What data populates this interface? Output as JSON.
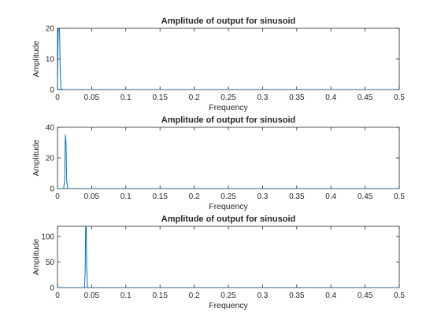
{
  "chart_data": [
    {
      "type": "line",
      "title": "Amplitude of output for sinusoid",
      "xlabel": "Frequency",
      "ylabel": "Amplitude",
      "xlim": [
        0,
        0.5
      ],
      "ylim": [
        0,
        20
      ],
      "xticks": [
        0,
        0.05,
        0.1,
        0.15,
        0.2,
        0.25,
        0.3,
        0.35,
        0.4,
        0.45,
        0.5
      ],
      "xtick_labels": [
        "0",
        "0.05",
        "0.1",
        "0.15",
        "0.2",
        "0.25",
        "0.3",
        "0.35",
        "0.4",
        "0.45",
        "0.5"
      ],
      "yticks": [
        0,
        10,
        20
      ],
      "ytick_labels": [
        "0",
        "10",
        "20"
      ],
      "grid": false,
      "color": "#0072BD",
      "series": [
        {
          "x": [
            0,
            0.001,
            0.002,
            0.003,
            0.004,
            0.005,
            0.006,
            0.008,
            0.5
          ],
          "y": [
            0.3,
            19.0,
            20.0,
            19.5,
            6.0,
            0.5,
            0.2,
            0,
            0
          ]
        }
      ]
    },
    {
      "type": "line",
      "title": "Amplitude of output for sinusoid",
      "xlabel": "Frequency",
      "ylabel": "Amplitude",
      "xlim": [
        0,
        0.5
      ],
      "ylim": [
        0,
        40
      ],
      "xticks": [
        0,
        0.05,
        0.1,
        0.15,
        0.2,
        0.25,
        0.3,
        0.35,
        0.4,
        0.45,
        0.5
      ],
      "xtick_labels": [
        "0",
        "0.05",
        "0.1",
        "0.15",
        "0.2",
        "0.25",
        "0.3",
        "0.35",
        "0.4",
        "0.45",
        "0.5"
      ],
      "yticks": [
        0,
        20,
        40
      ],
      "ytick_labels": [
        "0",
        "20",
        "40"
      ],
      "grid": false,
      "color": "#0072BD",
      "series": [
        {
          "x": [
            0,
            0.009,
            0.0105,
            0.0115,
            0.0125,
            0.0135,
            0.015,
            0.5
          ],
          "y": [
            0,
            0,
            6,
            35,
            30,
            5,
            0,
            0
          ]
        }
      ]
    },
    {
      "type": "line",
      "title": "Amplitude of output for sinusoid",
      "xlabel": "Frequency",
      "ylabel": "Amplitude",
      "xlim": [
        0,
        0.5
      ],
      "ylim": [
        0,
        120
      ],
      "xticks": [
        0,
        0.05,
        0.1,
        0.15,
        0.2,
        0.25,
        0.3,
        0.35,
        0.4,
        0.45,
        0.5
      ],
      "xtick_labels": [
        "0",
        "0.05",
        "0.1",
        "0.15",
        "0.2",
        "0.25",
        "0.3",
        "0.35",
        "0.4",
        "0.45",
        "0.5"
      ],
      "yticks": [
        0,
        50,
        100
      ],
      "ytick_labels": [
        "0",
        "50",
        "100"
      ],
      "grid": false,
      "color": "#0072BD",
      "series": [
        {
          "x": [
            0,
            0.0395,
            0.0405,
            0.0412,
            0.042,
            0.0428,
            0.0438,
            0.5
          ],
          "y": [
            0,
            0,
            30,
            120,
            120,
            40,
            0,
            0
          ]
        }
      ]
    }
  ]
}
